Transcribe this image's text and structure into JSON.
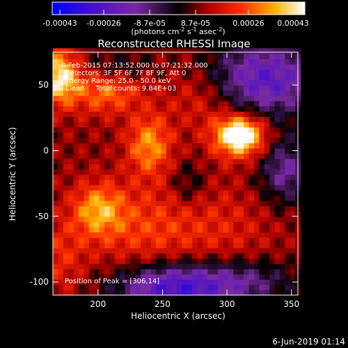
{
  "chart_data": {
    "type": "heatmap",
    "title": "Reconstructed RHESSI Image",
    "xlabel": "Heliocentric X (arcsec)",
    "ylabel": "Heliocentric Y (arcsec)",
    "xlim": [
      165,
      355
    ],
    "ylim": [
      -110,
      75
    ],
    "x_ticks": [
      200,
      250,
      300,
      350
    ],
    "y_ticks": [
      -100,
      -50,
      0,
      50
    ],
    "colorbar": {
      "ticks": [
        "-0.00043",
        "-0.00026",
        "-8.7e-05",
        "8.7e-05",
        "0.00026",
        "0.00043"
      ],
      "unit_text": "(photons cm",
      "unit_sup1": "-2",
      "unit_mid": " s",
      "unit_sup2": "-1",
      "unit_mid2": " asec",
      "unit_sup3": "-2",
      "unit_end": ")",
      "range": [
        -0.00043,
        0.00043
      ]
    },
    "annotations": {
      "time_range": "8-Feb-2015 07:13:52.000 to 07:21:32.000",
      "detectors": "Detectors: 3F 5F 6F 7F 8F 9F, Att 0",
      "energy_range": "Energy Range: 25.0 - 50.0 keV",
      "clean": "Clean     Total counts: 9.84E+03",
      "peak": "Position of Peak = [306,14]"
    },
    "blobs": [
      {
        "x": 310,
        "y": 12,
        "value": 0.00043,
        "sx": 14,
        "sy": 11
      },
      {
        "x": 170,
        "y": 57,
        "value": 0.00032,
        "sx": 10,
        "sy": 14
      },
      {
        "x": 240,
        "y": 5,
        "value": 0.00022,
        "sx": 12,
        "sy": 16
      },
      {
        "x": 200,
        "y": -45,
        "value": 0.00022,
        "sx": 14,
        "sy": 14
      },
      {
        "x": 205,
        "y": 45,
        "value": 0.00018,
        "sx": 20,
        "sy": 12
      },
      {
        "x": 235,
        "y": -60,
        "value": 0.00012,
        "sx": 28,
        "sy": 25
      },
      {
        "x": 280,
        "y": 40,
        "value": 0.0001,
        "sx": 18,
        "sy": 16
      },
      {
        "x": 295,
        "y": -60,
        "value": 8e-05,
        "sx": 30,
        "sy": 25
      },
      {
        "x": 170,
        "y": -80,
        "value": 0.0001,
        "sx": 15,
        "sy": 20
      },
      {
        "x": 330,
        "y": 55,
        "value": -0.00032,
        "sx": 30,
        "sy": 20
      },
      {
        "x": 345,
        "y": -15,
        "value": -0.00022,
        "sx": 14,
        "sy": 18
      },
      {
        "x": 255,
        "y": -105,
        "value": -0.00035,
        "sx": 30,
        "sy": 14
      },
      {
        "x": 310,
        "y": -100,
        "value": -0.0002,
        "sx": 30,
        "sy": 12
      },
      {
        "x": 215,
        "y": 65,
        "value": -0.0001,
        "sx": 18,
        "sy": 8
      },
      {
        "x": 270,
        "y": -25,
        "value": -0.0001,
        "sx": 10,
        "sy": 12
      }
    ]
  },
  "footer": {
    "date": "6-Jun-2019 01:14"
  }
}
